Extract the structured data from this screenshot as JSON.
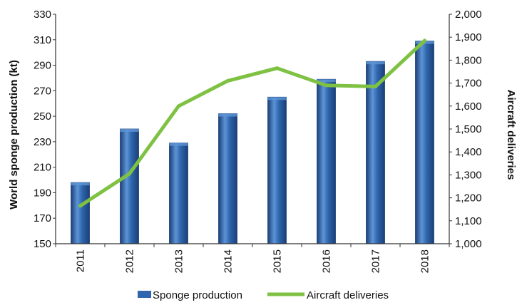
{
  "chart_data": {
    "type": "bar",
    "categories": [
      "2011",
      "2012",
      "2013",
      "2014",
      "2015",
      "2016",
      "2017",
      "2018"
    ],
    "series": [
      {
        "name": "Sponge production",
        "type": "bar",
        "axis": "left",
        "values": [
          198,
          240,
          229,
          252,
          265,
          279,
          293,
          309
        ]
      },
      {
        "name": "Aircraft deliveries",
        "type": "line",
        "axis": "right",
        "values": [
          1165,
          1305,
          1600,
          1710,
          1765,
          1690,
          1685,
          1885
        ]
      }
    ],
    "ylabel": "World sponge production (kt)",
    "y2label": "Aircraft deliveries",
    "ylim": [
      150,
      330
    ],
    "y2lim": [
      1000,
      2000
    ],
    "yticks": [
      "150",
      "170",
      "190",
      "210",
      "230",
      "250",
      "270",
      "290",
      "310",
      "330"
    ],
    "y2ticks": [
      "1,000",
      "1,100",
      "1,200",
      "1,300",
      "1,400",
      "1,500",
      "1,600",
      "1,700",
      "1,800",
      "1,900",
      "2,000"
    ],
    "grid": false,
    "legend": "bottom",
    "colors": {
      "bar": "#2f66ad",
      "bar_dark": "#1b3f78",
      "bar_light": "#5d95d6",
      "line": "#7fc143",
      "axis": "#333333"
    }
  }
}
